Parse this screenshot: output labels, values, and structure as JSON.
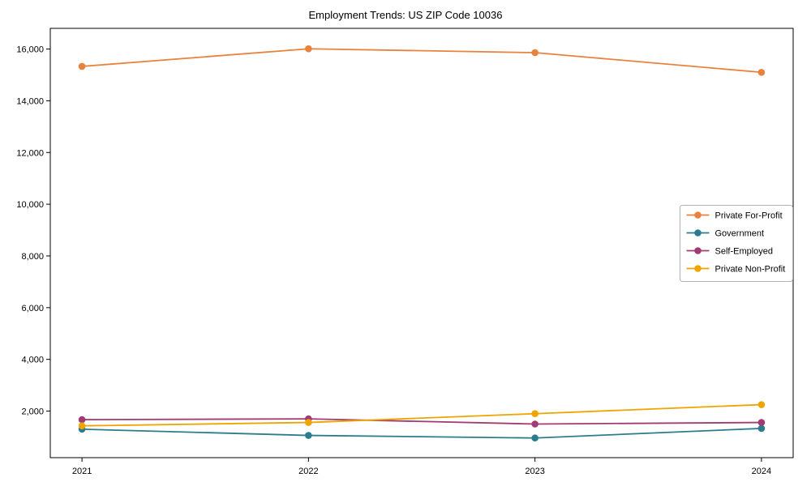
{
  "chart_data": {
    "type": "line",
    "title": "Employment Trends: US ZIP Code 10036",
    "xlabel": "",
    "ylabel": "",
    "x": [
      "2021",
      "2022",
      "2023",
      "2024"
    ],
    "series": [
      {
        "name": "Private For-Profit",
        "color": "#e8823c",
        "values": [
          15330,
          16010,
          15860,
          15100
        ]
      },
      {
        "name": "Government",
        "color": "#2b7d8e",
        "values": [
          1300,
          1060,
          960,
          1330
        ]
      },
      {
        "name": "Self-Employed",
        "color": "#a23b72",
        "values": [
          1670,
          1700,
          1500,
          1560
        ]
      },
      {
        "name": "Private Non-Profit",
        "color": "#efa400",
        "values": [
          1430,
          1560,
          1900,
          2250
        ]
      }
    ],
    "ylim": [
      200,
      16800
    ],
    "yticks": [
      2000,
      4000,
      6000,
      8000,
      10000,
      12000,
      14000,
      16000
    ],
    "grid": "off",
    "legend_position": "center-right",
    "axis_color": "#000000",
    "legend_border_color": "#b0b0b0"
  }
}
